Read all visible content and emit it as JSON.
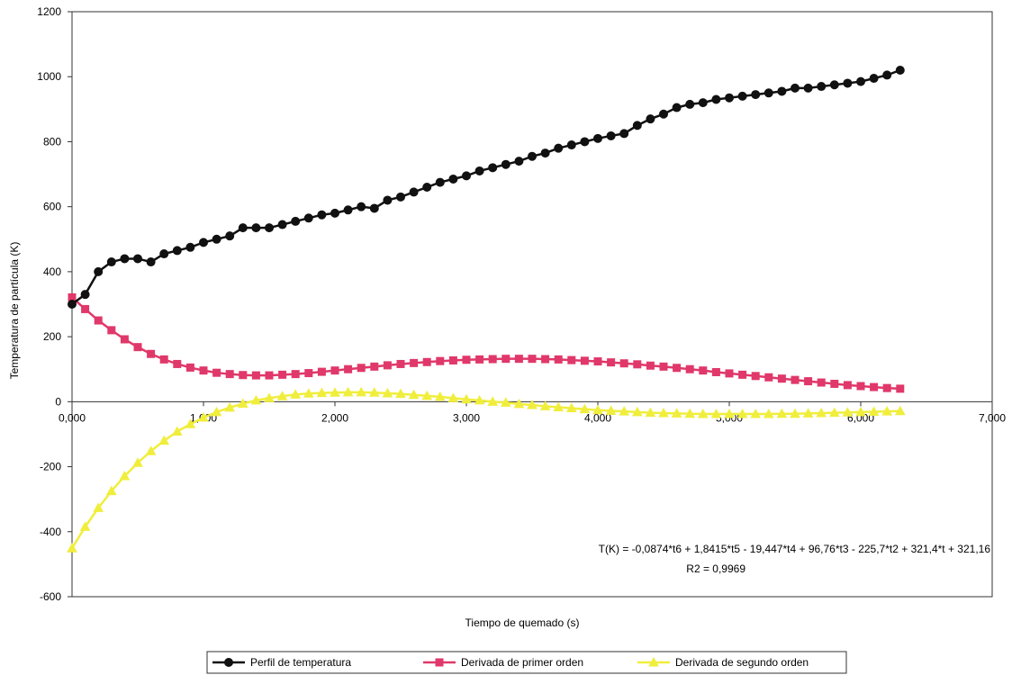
{
  "chart_data": {
    "type": "line",
    "title": "",
    "xlabel": "Tiempo de quemado (s)",
    "ylabel": "Temperatura de partícula (K)",
    "xlim": [
      0,
      7
    ],
    "ylim": [
      -600,
      1200
    ],
    "x_ticks": [
      0,
      1,
      2,
      3,
      4,
      5,
      6,
      7
    ],
    "x_tick_labels": [
      "0,000",
      "1,000",
      "2,000",
      "3,000",
      "4,000",
      "5,000",
      "6,000",
      "7,000"
    ],
    "y_ticks": [
      -600,
      -400,
      -200,
      0,
      200,
      400,
      600,
      800,
      1000,
      1200
    ],
    "y_tick_labels": [
      "-600",
      "-400",
      "-200",
      "0",
      "200",
      "400",
      "600",
      "800",
      "1000",
      "1200"
    ],
    "grid": false,
    "legend_position": "bottom",
    "annotation": {
      "equation": "T(K) = -0,0874*t6 + 1,8415*t5 - 19,447*t4 + 96,76*t3 - 225,7*t2 + 321,4*t + 321,16",
      "r2": "R2 = 0,9969"
    },
    "series": [
      {
        "name": "Perfil de temperatura",
        "color": "#111111",
        "marker": "circle",
        "x": [
          0.0,
          0.1,
          0.2,
          0.3,
          0.4,
          0.5,
          0.6,
          0.7,
          0.8,
          0.9,
          1.0,
          1.1,
          1.2,
          1.3,
          1.4,
          1.5,
          1.6,
          1.7,
          1.8,
          1.9,
          2.0,
          2.1,
          2.2,
          2.3,
          2.4,
          2.5,
          2.6,
          2.7,
          2.8,
          2.9,
          3.0,
          3.1,
          3.2,
          3.3,
          3.4,
          3.5,
          3.6,
          3.7,
          3.8,
          3.9,
          4.0,
          4.1,
          4.2,
          4.3,
          4.4,
          4.5,
          4.6,
          4.7,
          4.8,
          4.9,
          5.0,
          5.1,
          5.2,
          5.3,
          5.4,
          5.5,
          5.6,
          5.7,
          5.8,
          5.9,
          6.0,
          6.1,
          6.2,
          6.3
        ],
        "values": [
          300,
          330,
          400,
          430,
          440,
          440,
          430,
          455,
          465,
          475,
          490,
          500,
          510,
          535,
          535,
          535,
          545,
          555,
          565,
          575,
          580,
          590,
          600,
          595,
          620,
          630,
          645,
          660,
          675,
          685,
          695,
          710,
          720,
          730,
          740,
          755,
          765,
          780,
          790,
          800,
          810,
          818,
          825,
          850,
          870,
          885,
          905,
          915,
          920,
          930,
          935,
          940,
          945,
          950,
          955,
          965,
          965,
          970,
          975,
          980,
          985,
          995,
          1005,
          1020
        ]
      },
      {
        "name": "Derivada de primer orden",
        "color": "#e0386a",
        "marker": "square",
        "x": [
          0.0,
          0.1,
          0.2,
          0.3,
          0.4,
          0.5,
          0.6,
          0.7,
          0.8,
          0.9,
          1.0,
          1.1,
          1.2,
          1.3,
          1.4,
          1.5,
          1.6,
          1.7,
          1.8,
          1.9,
          2.0,
          2.1,
          2.2,
          2.3,
          2.4,
          2.5,
          2.6,
          2.7,
          2.8,
          2.9,
          3.0,
          3.1,
          3.2,
          3.3,
          3.4,
          3.5,
          3.6,
          3.7,
          3.8,
          3.9,
          4.0,
          4.1,
          4.2,
          4.3,
          4.4,
          4.5,
          4.6,
          4.7,
          4.8,
          4.9,
          5.0,
          5.1,
          5.2,
          5.3,
          5.4,
          5.5,
          5.6,
          5.7,
          5.8,
          5.9,
          6.0,
          6.1,
          6.2,
          6.3
        ],
        "values": [
          321,
          285,
          250,
          220,
          192,
          168,
          147,
          130,
          116,
          105,
          96,
          89,
          85,
          82,
          81,
          81,
          83,
          85,
          88,
          92,
          96,
          100,
          104,
          108,
          112,
          116,
          119,
          122,
          125,
          127,
          129,
          130,
          131,
          132,
          132,
          132,
          131,
          130,
          128,
          126,
          124,
          121,
          118,
          115,
          111,
          108,
          104,
          100,
          96,
          91,
          87,
          83,
          79,
          75,
          71,
          67,
          63,
          59,
          55,
          51,
          48,
          45,
          42,
          40
        ]
      },
      {
        "name": "Derivada de segundo orden",
        "color": "#f0ee3c",
        "marker": "triangle",
        "x": [
          0.0,
          0.1,
          0.2,
          0.3,
          0.4,
          0.5,
          0.6,
          0.7,
          0.8,
          0.9,
          1.0,
          1.1,
          1.2,
          1.3,
          1.4,
          1.5,
          1.6,
          1.7,
          1.8,
          1.9,
          2.0,
          2.1,
          2.2,
          2.3,
          2.4,
          2.5,
          2.6,
          2.7,
          2.8,
          2.9,
          3.0,
          3.1,
          3.2,
          3.3,
          3.4,
          3.5,
          3.6,
          3.7,
          3.8,
          3.9,
          4.0,
          4.1,
          4.2,
          4.3,
          4.4,
          4.5,
          4.6,
          4.7,
          4.8,
          4.9,
          5.0,
          5.1,
          5.2,
          5.3,
          5.4,
          5.5,
          5.6,
          5.7,
          5.8,
          5.9,
          6.0,
          6.1,
          6.2,
          6.3
        ],
        "values": [
          -451,
          -385,
          -327,
          -275,
          -229,
          -188,
          -152,
          -120,
          -92,
          -69,
          -49,
          -32,
          -18,
          -6,
          4,
          11,
          17,
          22,
          25,
          27,
          28,
          29,
          29,
          28,
          26,
          24,
          21,
          18,
          15,
          11,
          7,
          4,
          0,
          -3,
          -7,
          -10,
          -14,
          -17,
          -20,
          -23,
          -26,
          -28,
          -30,
          -32,
          -34,
          -35,
          -36,
          -37,
          -38,
          -38,
          -38,
          -38,
          -38,
          -38,
          -37,
          -37,
          -36,
          -35,
          -34,
          -33,
          -32,
          -31,
          -30,
          -29
        ]
      }
    ]
  }
}
